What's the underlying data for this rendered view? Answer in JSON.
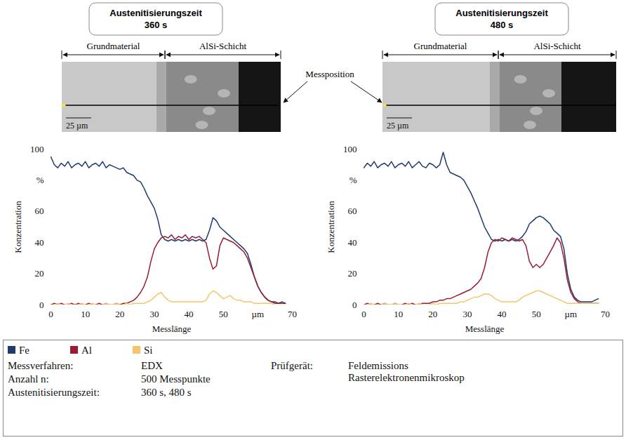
{
  "chart_data": [
    {
      "type": "line",
      "title": "Austenitisierungszeit 360 s",
      "annotations": [
        "Grundmaterial",
        "AlSi-Schicht",
        "25 µm"
      ],
      "x_label": "Messlänge",
      "y_label": "Konzentration",
      "xlim": [
        0,
        70
      ],
      "xticks": [
        0,
        10,
        20,
        30,
        40,
        50,
        {
          "value": 60,
          "label": "µm"
        },
        70
      ],
      "ylim": [
        0,
        100
      ],
      "yticks": [
        0,
        20,
        40,
        60,
        {
          "value": 80,
          "label": "%"
        },
        100
      ],
      "grid": false,
      "legend": "bottom",
      "x": [
        0,
        1,
        2,
        3,
        4,
        5,
        6,
        7,
        8,
        9,
        10,
        11,
        12,
        13,
        14,
        15,
        16,
        17,
        18,
        19,
        20,
        21,
        22,
        23,
        24,
        25,
        26,
        27,
        28,
        29,
        30,
        31,
        32,
        33,
        34,
        35,
        36,
        37,
        38,
        39,
        40,
        41,
        42,
        43,
        44,
        45,
        46,
        47,
        48,
        49,
        50,
        51,
        52,
        53,
        54,
        55,
        56,
        57,
        58,
        59,
        60,
        61,
        62,
        63,
        64,
        65,
        66,
        67,
        68
      ],
      "series": [
        {
          "name": "Fe",
          "color": "#1f3b6b",
          "values": [
            95,
            90,
            88,
            91,
            89,
            92,
            88,
            90,
            91,
            89,
            92,
            88,
            90,
            91,
            89,
            92,
            88,
            90,
            89,
            88,
            87,
            88,
            85,
            84,
            83,
            80,
            79,
            75,
            70,
            66,
            62,
            55,
            45,
            42,
            41,
            42,
            41,
            42,
            41,
            42,
            41,
            42,
            41,
            42,
            41,
            42,
            48,
            56,
            54,
            50,
            48,
            46,
            44,
            42,
            40,
            38,
            36,
            33,
            26,
            18,
            12,
            8,
            5,
            3,
            2,
            2,
            1,
            2,
            1
          ]
        },
        {
          "name": "Al",
          "color": "#9b1b33",
          "values": [
            0,
            1,
            0,
            1,
            0,
            0,
            1,
            0,
            1,
            0,
            0,
            1,
            0,
            0,
            1,
            0,
            1,
            0,
            0,
            1,
            0,
            1,
            1,
            2,
            3,
            5,
            8,
            12,
            18,
            28,
            36,
            40,
            43,
            44,
            43,
            45,
            42,
            44,
            43,
            45,
            42,
            44,
            43,
            44,
            42,
            40,
            30,
            23,
            25,
            38,
            43,
            42,
            41,
            40,
            38,
            36,
            34,
            30,
            24,
            18,
            12,
            8,
            5,
            3,
            2,
            1,
            1,
            1,
            1
          ]
        },
        {
          "name": "Si",
          "color": "#f6c56a",
          "values": [
            0,
            0,
            1,
            0,
            0,
            1,
            0,
            0,
            0,
            1,
            0,
            0,
            1,
            0,
            0,
            0,
            1,
            0,
            0,
            1,
            0,
            0,
            1,
            0,
            1,
            1,
            1,
            1,
            2,
            3,
            5,
            7,
            8,
            5,
            3,
            2,
            2,
            2,
            2,
            2,
            2,
            2,
            2,
            2,
            2,
            3,
            7,
            9,
            8,
            6,
            4,
            5,
            6,
            4,
            3,
            3,
            2,
            2,
            2,
            1,
            1,
            1,
            1,
            1,
            1,
            0,
            0,
            0,
            0
          ]
        }
      ]
    },
    {
      "type": "line",
      "title": "Austenitisierungszeit 480 s",
      "annotations": [
        "Grundmaterial",
        "AlSi-Schicht",
        "25 µm"
      ],
      "x_label": "Messlänge",
      "y_label": "Konzentration",
      "xlim": [
        0,
        70
      ],
      "xticks": [
        0,
        10,
        20,
        30,
        40,
        50,
        {
          "value": 60,
          "label": "µm"
        },
        70
      ],
      "ylim": [
        0,
        100
      ],
      "yticks": [
        0,
        20,
        40,
        60,
        {
          "value": 80,
          "label": "%"
        },
        100
      ],
      "grid": false,
      "legend": "bottom",
      "x": [
        0,
        1,
        2,
        3,
        4,
        5,
        6,
        7,
        8,
        9,
        10,
        11,
        12,
        13,
        14,
        15,
        16,
        17,
        18,
        19,
        20,
        21,
        22,
        23,
        24,
        25,
        26,
        27,
        28,
        29,
        30,
        31,
        32,
        33,
        34,
        35,
        36,
        37,
        38,
        39,
        40,
        41,
        42,
        43,
        44,
        45,
        46,
        47,
        48,
        49,
        50,
        51,
        52,
        53,
        54,
        55,
        56,
        57,
        58,
        59,
        60,
        61,
        62,
        63,
        64,
        65,
        66,
        67,
        68
      ],
      "series": [
        {
          "name": "Fe",
          "color": "#1f3b6b",
          "values": [
            88,
            91,
            89,
            92,
            88,
            90,
            91,
            89,
            92,
            88,
            90,
            91,
            89,
            92,
            88,
            90,
            92,
            89,
            88,
            91,
            90,
            88,
            90,
            98,
            90,
            85,
            84,
            83,
            82,
            80,
            76,
            72,
            67,
            62,
            56,
            50,
            46,
            42,
            41,
            42,
            41,
            42,
            41,
            42,
            41,
            42,
            44,
            47,
            52,
            54,
            56,
            57,
            56,
            54,
            52,
            48,
            46,
            44,
            36,
            20,
            10,
            5,
            3,
            2,
            2,
            2,
            2,
            3,
            4
          ]
        },
        {
          "name": "Al",
          "color": "#9b1b33",
          "values": [
            0,
            1,
            0,
            0,
            1,
            0,
            1,
            0,
            0,
            1,
            0,
            0,
            1,
            0,
            1,
            0,
            0,
            1,
            1,
            1,
            2,
            2,
            3,
            3,
            4,
            4,
            5,
            6,
            7,
            8,
            9,
            10,
            12,
            14,
            17,
            24,
            34,
            40,
            42,
            41,
            43,
            42,
            41,
            43,
            42,
            41,
            42,
            38,
            28,
            24,
            26,
            24,
            26,
            30,
            34,
            38,
            43,
            40,
            30,
            16,
            8,
            4,
            2,
            1,
            1,
            1,
            1,
            1,
            1
          ]
        },
        {
          "name": "Si",
          "color": "#f6c56a",
          "values": [
            0,
            0,
            1,
            0,
            0,
            0,
            1,
            0,
            0,
            1,
            0,
            0,
            0,
            1,
            0,
            0,
            1,
            0,
            0,
            0,
            1,
            0,
            1,
            1,
            1,
            1,
            1,
            1,
            2,
            2,
            3,
            4,
            5,
            5,
            6,
            7,
            7,
            6,
            4,
            3,
            2,
            2,
            2,
            2,
            2,
            3,
            5,
            6,
            7,
            8,
            9,
            9,
            8,
            7,
            6,
            5,
            4,
            3,
            2,
            1,
            1,
            1,
            1,
            1,
            1,
            1,
            1,
            1,
            1
          ]
        }
      ]
    }
  ],
  "annotation": "Messposition",
  "info": [
    {
      "label": "Messverfahren:",
      "value": "EDX"
    },
    {
      "label": "Prüfgerät:",
      "value": "Feldemissions Rasterelektronenmikroskop"
    },
    {
      "label": "Anzahl n:",
      "value": "500 Messpunkte"
    },
    {
      "label": "Austenitisierungszeit:",
      "value": "360 s, 480 s"
    }
  ]
}
